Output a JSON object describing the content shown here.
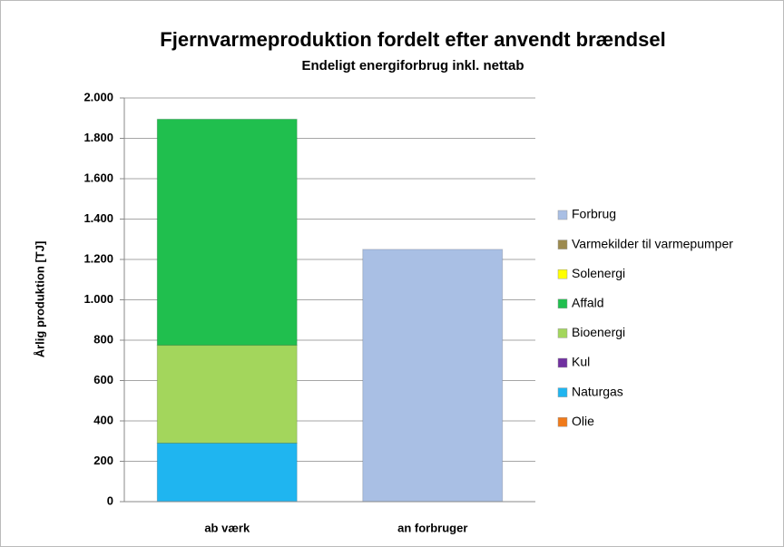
{
  "chart_data": {
    "type": "stacked_bar",
    "title": "Fjernvarmeproduktion fordelt efter anvendt brændsel",
    "subtitle": "Endeligt energiforbrug inkl. nettab",
    "y_label": "Årlig produktion [TJ]",
    "categories": [
      "ab værk",
      "an forbruger"
    ],
    "series": [
      {
        "name": "Olie",
        "color": "#f07a1a",
        "values": [
          0,
          0
        ]
      },
      {
        "name": "Naturgas",
        "color": "#1fb5f0",
        "values": [
          290,
          0
        ]
      },
      {
        "name": "Kul",
        "color": "#7030a0",
        "values": [
          0,
          0
        ]
      },
      {
        "name": "Bioenergi",
        "color": "#a3d65c",
        "values": [
          485,
          0
        ]
      },
      {
        "name": "Affald",
        "color": "#20bf4e",
        "values": [
          1120,
          0
        ]
      },
      {
        "name": "Solenergi",
        "color": "#ffff00",
        "values": [
          0,
          0
        ]
      },
      {
        "name": "Varmekilder til varmepumper",
        "color": "#9c8a4e",
        "values": [
          0,
          0
        ]
      },
      {
        "name": "Forbrug",
        "color": "#a9bfe4",
        "values": [
          0,
          1250
        ]
      }
    ],
    "ylim": [
      0,
      2000
    ],
    "yticks": [
      0,
      200,
      400,
      600,
      800,
      {
        "value": 1000,
        "label": "1.000"
      },
      {
        "value": 1200,
        "label": "1.200"
      },
      {
        "value": 1400,
        "label": "1.400"
      },
      {
        "value": 1600,
        "label": "1.600"
      },
      {
        "value": 1800,
        "label": "1.800"
      },
      {
        "value": 2000,
        "label": "2.000"
      }
    ],
    "grid": true,
    "legend": "right"
  }
}
